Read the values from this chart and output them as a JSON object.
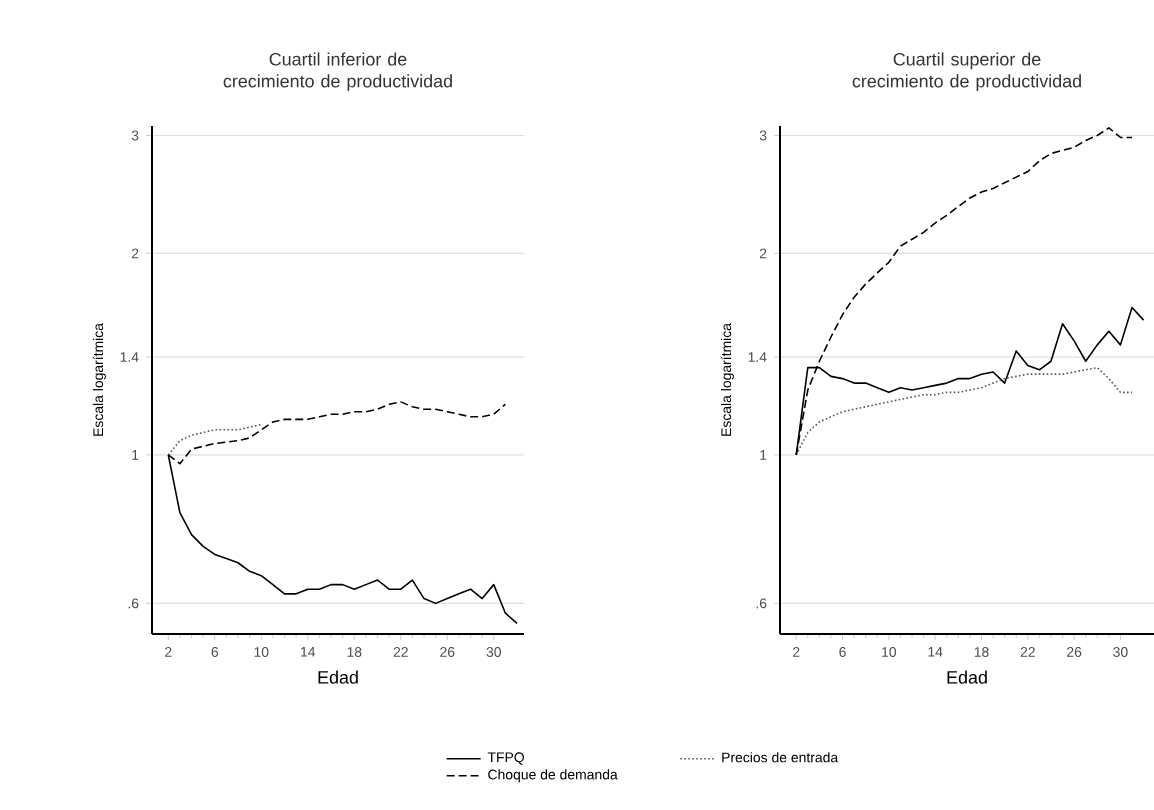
{
  "chart_data": [
    {
      "type": "line",
      "title": "Cuartil inferior de crecimiento de productividad",
      "xlabel": "Edad",
      "ylabel": "Escala logarítmica",
      "log": "y",
      "grid": "y",
      "legend": "bottom",
      "marker": "none",
      "x": [
        2,
        3,
        4,
        5,
        6,
        7,
        8,
        9,
        10,
        11,
        12,
        13,
        14,
        15,
        16,
        17,
        18,
        19,
        20,
        21,
        22,
        23,
        24,
        25,
        26,
        27,
        28,
        29,
        30,
        31,
        32
      ],
      "xlim": [
        0.6,
        32.6
      ],
      "xticks": [
        2,
        6,
        10,
        14,
        18,
        22,
        26,
        30
      ],
      "ylim": [
        0.54,
        3.1
      ],
      "yticks": [
        {
          "value": 0.6,
          "label": ".6"
        },
        1,
        1.4,
        2,
        3
      ],
      "series": [
        {
          "name": "TFPQ",
          "color": "#000000",
          "line_style": "solid",
          "values": [
            1.0,
            0.82,
            0.76,
            0.73,
            0.71,
            0.7,
            0.69,
            0.67,
            0.66,
            0.64,
            0.62,
            0.62,
            0.63,
            0.63,
            0.64,
            0.64,
            0.63,
            0.64,
            0.65,
            0.63,
            0.63,
            0.65,
            0.61,
            0.6,
            0.61,
            0.62,
            0.63,
            0.61,
            0.64,
            0.58,
            0.56
          ]
        },
        {
          "name": "Precios de entrada",
          "color": "#555555",
          "line_style": "dotted",
          "values": [
            1.0,
            1.05,
            1.07,
            1.08,
            1.09,
            1.09,
            1.09,
            1.1,
            1.11,
            null,
            null,
            null,
            null,
            null,
            null,
            null,
            null,
            null,
            null,
            null,
            null,
            null,
            null,
            null,
            null,
            null,
            null,
            null,
            null,
            null,
            null
          ]
        },
        {
          "name": "Choque de demanda",
          "color": "#000000",
          "line_style": "dashed",
          "values": [
            1.0,
            0.97,
            1.02,
            1.03,
            1.04,
            1.045,
            1.05,
            1.06,
            1.09,
            1.12,
            1.13,
            1.13,
            1.13,
            1.14,
            1.15,
            1.15,
            1.16,
            1.16,
            1.17,
            1.19,
            1.2,
            1.18,
            1.17,
            1.17,
            1.16,
            1.15,
            1.14,
            1.14,
            1.15,
            1.19,
            null
          ]
        }
      ]
    },
    {
      "type": "line",
      "title": "Cuartil superior de crecimiento de productividad",
      "xlabel": "Edad",
      "ylabel": "Escala logarítmica",
      "log": "y",
      "grid": "y",
      "marker": "none",
      "x": [
        2,
        3,
        4,
        5,
        6,
        7,
        8,
        9,
        10,
        11,
        12,
        13,
        14,
        15,
        16,
        17,
        18,
        19,
        20,
        21,
        22,
        23,
        24,
        25,
        26,
        27,
        28,
        29,
        30,
        31,
        32
      ],
      "xlim": [
        0.6,
        32.9
      ],
      "xticks": [
        2,
        6,
        10,
        14,
        18,
        22,
        26,
        30
      ],
      "ylim": [
        0.54,
        3.1
      ],
      "yticks": [
        {
          "value": 0.6,
          "label": ".6"
        },
        1,
        1.4,
        2,
        3
      ],
      "series": [
        {
          "color": "#000000",
          "line_style": "solid",
          "values": [
            1.0,
            1.35,
            1.35,
            1.31,
            1.3,
            1.28,
            1.28,
            1.26,
            1.24,
            1.26,
            1.25,
            1.26,
            1.27,
            1.28,
            1.3,
            1.3,
            1.32,
            1.33,
            1.28,
            1.43,
            1.36,
            1.34,
            1.38,
            1.57,
            1.48,
            1.38,
            1.46,
            1.53,
            1.46,
            1.66,
            1.59
          ]
        },
        {
          "color": "#555555",
          "line_style": "dotted",
          "values": [
            1.0,
            1.08,
            1.12,
            1.14,
            1.16,
            1.17,
            1.18,
            1.19,
            1.2,
            1.21,
            1.22,
            1.23,
            1.23,
            1.24,
            1.24,
            1.25,
            1.26,
            1.28,
            1.3,
            1.31,
            1.32,
            1.32,
            1.32,
            1.32,
            1.33,
            1.34,
            1.35,
            1.3,
            1.24,
            1.24,
            null
          ]
        },
        {
          "color": "#000000",
          "line_style": "dashed",
          "values": [
            1.0,
            1.25,
            1.38,
            1.5,
            1.62,
            1.72,
            1.8,
            1.87,
            1.94,
            2.05,
            2.1,
            2.15,
            2.22,
            2.28,
            2.35,
            2.42,
            2.47,
            2.5,
            2.55,
            2.6,
            2.65,
            2.75,
            2.82,
            2.85,
            2.88,
            2.95,
            3.0,
            3.08,
            2.98,
            2.98,
            null
          ]
        }
      ]
    }
  ]
}
